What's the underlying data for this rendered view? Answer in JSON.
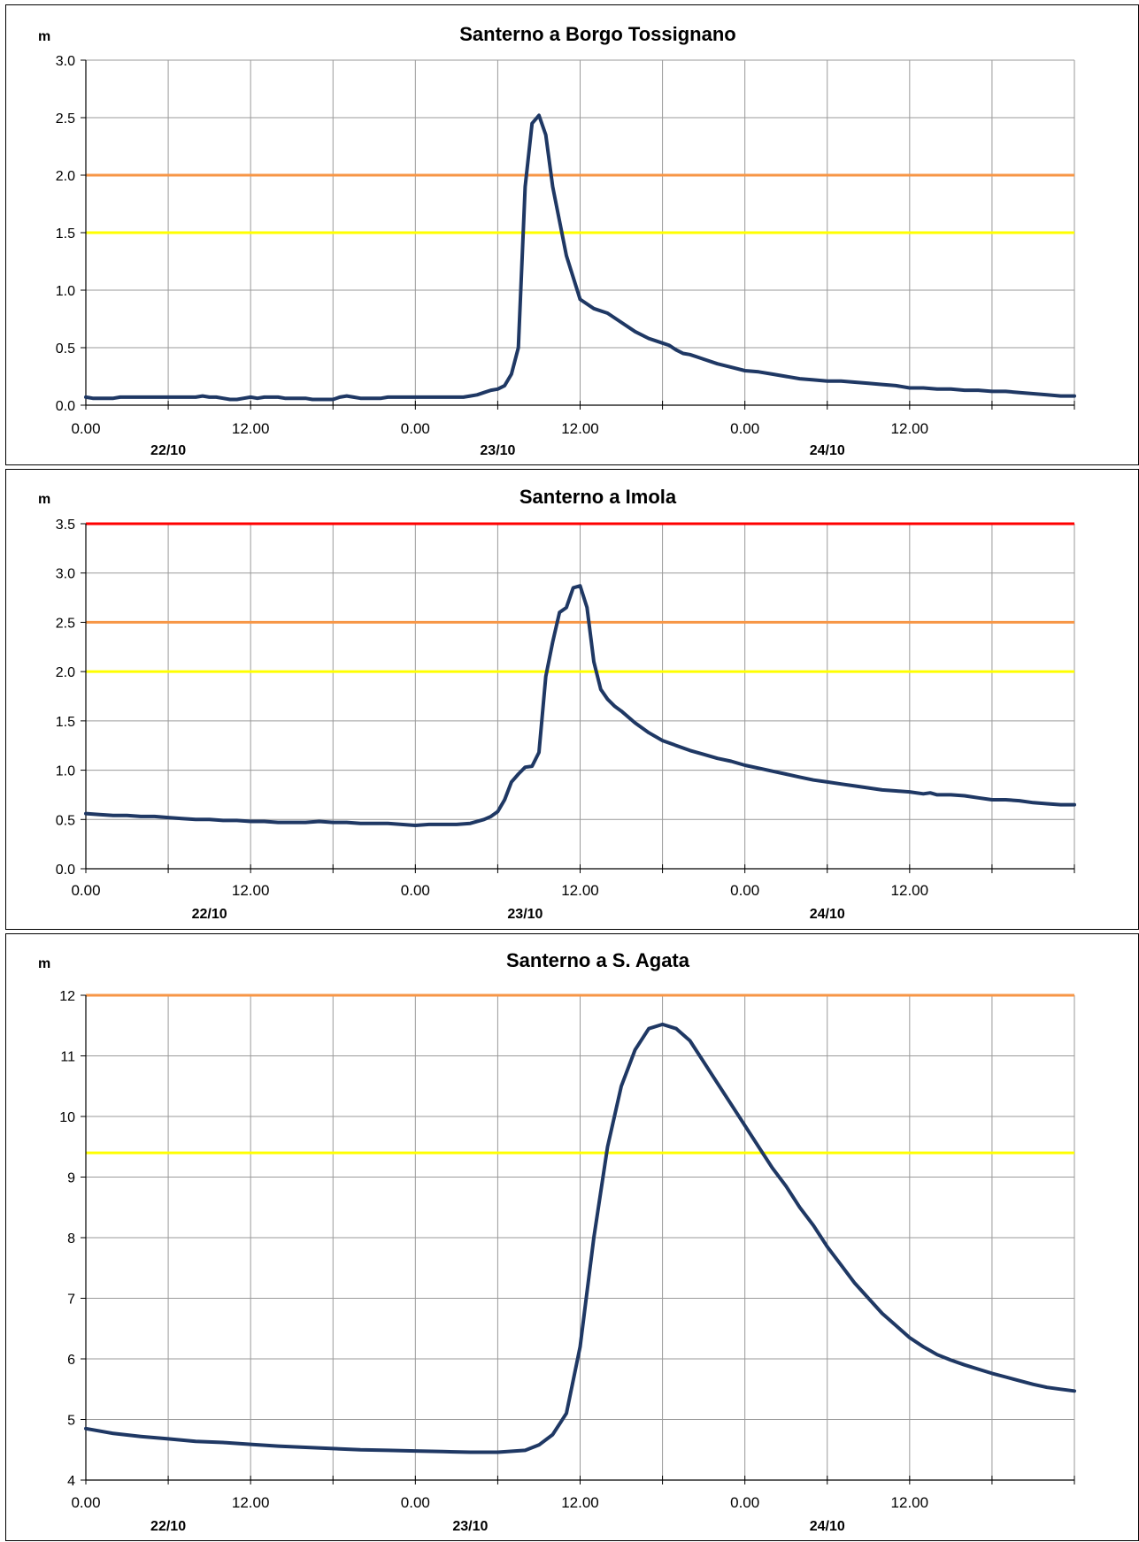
{
  "chart_data": [
    {
      "type": "line",
      "title": "Santerno a Borgo Tossignano",
      "ylabel": "m",
      "ylim": [
        0,
        3.0
      ],
      "yticks": [
        "0.0",
        "0.5",
        "1.0",
        "1.5",
        "2.0",
        "2.5",
        "3.0"
      ],
      "xlim": [
        0,
        72
      ],
      "xticks": [
        "0.00",
        "12.00",
        "0.00",
        "12.00",
        "0.00",
        "12.00"
      ],
      "dates": [
        {
          "label": "22/10",
          "at": 6
        },
        {
          "label": "23/10",
          "at": 30
        },
        {
          "label": "24/10",
          "at": 54
        }
      ],
      "grid": true,
      "thresholds": [
        {
          "value": 2.0,
          "color": "#f79646"
        },
        {
          "value": 1.5,
          "color": "#ffff00"
        }
      ],
      "series": [
        {
          "color": "#1f3864",
          "x": [
            0,
            0.5,
            1,
            2,
            2.5,
            3,
            8,
            8.5,
            9,
            9.5,
            10,
            10.5,
            11,
            11.5,
            12,
            12.5,
            13,
            13.5,
            14,
            14.5,
            15,
            15.5,
            16,
            16.5,
            17,
            17.5,
            18,
            18.5,
            19,
            19.5,
            20,
            20.5,
            21,
            21.5,
            22,
            22.5,
            23,
            27,
            27.5,
            28,
            28.5,
            29,
            29.5,
            30,
            30.5,
            31,
            31.5,
            32,
            32.5,
            33,
            33.5,
            34,
            35,
            36,
            37,
            38,
            39,
            40,
            41,
            42,
            42.5,
            43,
            43.5,
            44,
            44.5,
            45,
            46,
            47,
            48,
            49,
            50,
            51,
            52,
            53,
            54,
            55,
            56,
            57,
            58,
            59,
            60,
            61,
            62,
            63,
            64,
            65,
            66,
            67,
            68,
            69,
            70,
            71,
            72
          ],
          "y": [
            0.07,
            0.06,
            0.06,
            0.06,
            0.07,
            0.07,
            0.07,
            0.08,
            0.07,
            0.07,
            0.06,
            0.05,
            0.05,
            0.06,
            0.07,
            0.06,
            0.07,
            0.07,
            0.07,
            0.06,
            0.06,
            0.06,
            0.06,
            0.05,
            0.05,
            0.05,
            0.05,
            0.07,
            0.08,
            0.07,
            0.06,
            0.06,
            0.06,
            0.06,
            0.07,
            0.07,
            0.07,
            0.07,
            0.07,
            0.08,
            0.09,
            0.11,
            0.13,
            0.14,
            0.17,
            0.27,
            0.5,
            1.9,
            2.45,
            2.52,
            2.35,
            1.9,
            1.3,
            0.92,
            0.84,
            0.8,
            0.72,
            0.64,
            0.58,
            0.54,
            0.52,
            0.48,
            0.45,
            0.44,
            0.42,
            0.4,
            0.36,
            0.33,
            0.3,
            0.29,
            0.27,
            0.25,
            0.23,
            0.22,
            0.21,
            0.21,
            0.2,
            0.19,
            0.18,
            0.17,
            0.15,
            0.15,
            0.14,
            0.14,
            0.13,
            0.13,
            0.12,
            0.12,
            0.11,
            0.1,
            0.09,
            0.08,
            0.08
          ]
        }
      ]
    },
    {
      "type": "line",
      "title": "Santerno a Imola",
      "ylabel": "m",
      "ylim": [
        0,
        3.5
      ],
      "yticks": [
        "0.0",
        "0.5",
        "1.0",
        "1.5",
        "2.0",
        "2.5",
        "3.0",
        "3.5"
      ],
      "xlim": [
        0,
        72
      ],
      "xticks": [
        "0.00",
        "12.00",
        "0.00",
        "12.00",
        "0.00",
        "12.00"
      ],
      "dates": [
        {
          "label": "22/10",
          "at": 9
        },
        {
          "label": "23/10",
          "at": 32
        },
        {
          "label": "24/10",
          "at": 54
        }
      ],
      "grid": true,
      "thresholds": [
        {
          "value": 3.5,
          "color": "#ff0000"
        },
        {
          "value": 2.5,
          "color": "#f79646"
        },
        {
          "value": 2.0,
          "color": "#ffff00"
        }
      ],
      "series": [
        {
          "color": "#1f3864",
          "x": [
            0,
            1,
            2,
            3,
            4,
            5,
            6,
            7,
            8,
            9,
            10,
            11,
            12,
            13,
            14,
            15,
            16,
            17,
            18,
            19,
            20,
            21,
            22,
            23,
            24,
            25,
            26,
            27,
            28,
            29,
            29.5,
            30,
            30.5,
            31,
            31.5,
            32,
            32.5,
            33,
            33.5,
            34,
            34.5,
            35,
            35.5,
            36,
            36.5,
            37,
            37.5,
            38,
            38.5,
            39,
            40,
            41,
            42,
            43,
            44,
            45,
            46,
            47,
            48,
            49,
            50,
            51,
            52,
            53,
            54,
            55,
            56,
            57,
            58,
            59,
            60,
            61,
            61.5,
            62,
            63,
            64,
            65,
            66,
            67,
            68,
            69,
            70,
            71,
            72
          ],
          "y": [
            0.56,
            0.55,
            0.54,
            0.54,
            0.53,
            0.53,
            0.52,
            0.51,
            0.5,
            0.5,
            0.49,
            0.49,
            0.48,
            0.48,
            0.47,
            0.47,
            0.47,
            0.48,
            0.47,
            0.47,
            0.46,
            0.46,
            0.46,
            0.45,
            0.44,
            0.45,
            0.45,
            0.45,
            0.46,
            0.5,
            0.53,
            0.58,
            0.7,
            0.88,
            0.96,
            1.03,
            1.04,
            1.18,
            1.95,
            2.3,
            2.6,
            2.65,
            2.85,
            2.87,
            2.65,
            2.1,
            1.82,
            1.72,
            1.65,
            1.6,
            1.48,
            1.38,
            1.3,
            1.25,
            1.2,
            1.16,
            1.12,
            1.09,
            1.05,
            1.02,
            0.99,
            0.96,
            0.93,
            0.9,
            0.88,
            0.86,
            0.84,
            0.82,
            0.8,
            0.79,
            0.78,
            0.76,
            0.77,
            0.75,
            0.75,
            0.74,
            0.72,
            0.7,
            0.7,
            0.69,
            0.67,
            0.66,
            0.65,
            0.65
          ]
        }
      ]
    },
    {
      "type": "line",
      "title": "Santerno a S. Agata",
      "ylabel": "m",
      "ylim": [
        4,
        12
      ],
      "yticks": [
        "4",
        "5",
        "6",
        "7",
        "8",
        "9",
        "10",
        "11",
        "12"
      ],
      "xlim": [
        0,
        72
      ],
      "xticks": [
        "0.00",
        "12.00",
        "0.00",
        "12.00",
        "0.00",
        "12.00"
      ],
      "dates": [
        {
          "label": "22/10",
          "at": 6
        },
        {
          "label": "23/10",
          "at": 28
        },
        {
          "label": "24/10",
          "at": 54
        }
      ],
      "grid": true,
      "thresholds": [
        {
          "value": 12,
          "color": "#f79646"
        },
        {
          "value": 9.4,
          "color": "#ffff00"
        }
      ],
      "series": [
        {
          "color": "#1f3864",
          "x": [
            0,
            2,
            4,
            6,
            8,
            10,
            12,
            14,
            16,
            18,
            20,
            22,
            24,
            26,
            28,
            30,
            32,
            33,
            34,
            35,
            36,
            37,
            38,
            39,
            40,
            41,
            42,
            43,
            44,
            45,
            46,
            47,
            48,
            49,
            50,
            51,
            52,
            53,
            54,
            55,
            56,
            57,
            58,
            59,
            60,
            61,
            62,
            63,
            64,
            65,
            66,
            67,
            68,
            69,
            70,
            71,
            72
          ],
          "y": [
            4.85,
            4.77,
            4.72,
            4.68,
            4.64,
            4.62,
            4.59,
            4.56,
            4.54,
            4.52,
            4.5,
            4.49,
            4.48,
            4.47,
            4.46,
            4.46,
            4.49,
            4.58,
            4.75,
            5.1,
            6.2,
            8.0,
            9.5,
            10.5,
            11.1,
            11.45,
            11.52,
            11.45,
            11.25,
            10.9,
            10.55,
            10.2,
            9.85,
            9.5,
            9.15,
            8.85,
            8.5,
            8.2,
            7.85,
            7.55,
            7.25,
            7.0,
            6.75,
            6.55,
            6.35,
            6.2,
            6.07,
            5.98,
            5.9,
            5.83,
            5.76,
            5.7,
            5.64,
            5.58,
            5.53,
            5.5,
            5.47
          ]
        }
      ]
    }
  ]
}
